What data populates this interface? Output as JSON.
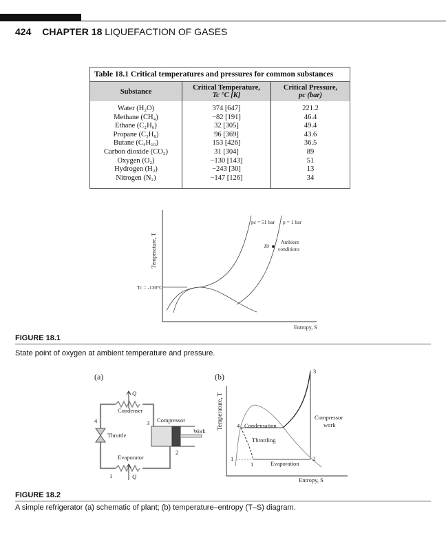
{
  "header": {
    "page_number": "424",
    "chapter": "CHAPTER 18",
    "chapter_title": "LIQUEFACTION OF GASES"
  },
  "table": {
    "caption": "Table 18.1  Critical temperatures and pressures for common substances",
    "headers": [
      "Substance",
      "Critical Temperature, Tc °C [K]",
      "Critical Pressure, pc (bar)"
    ],
    "header_lines": [
      [
        "Substance"
      ],
      [
        "Critical Temperature,",
        "Tc °C [K]"
      ],
      [
        "Critical Pressure,",
        "pc (bar)"
      ]
    ],
    "rows": [
      [
        "Water (H₂O)",
        "374 [647]",
        "221.2"
      ],
      [
        "Methane (CH₄)",
        "−82 [191]",
        "46.4"
      ],
      [
        "Ethane (C₂H₆)",
        "32 [305]",
        "49.4"
      ],
      [
        "Propane (C₃H₈)",
        "96 [369]",
        "43.6"
      ],
      [
        "Butane (C₄H₁₀)",
        "153 [426]",
        "36.5"
      ],
      [
        "Carbon dioxide (CO₂)",
        "31 [304]",
        "89"
      ],
      [
        "Oxygen (O₂)",
        "−130 [143]",
        "51"
      ],
      [
        "Hydrogen (H₂)",
        "−243 [30]",
        "13"
      ],
      [
        "Nitrogen (N₂)",
        "−147 [126]",
        "34"
      ]
    ]
  },
  "figure1": {
    "label": "FIGURE 18.1",
    "caption": "State point of oxygen at ambient temperature and pressure.",
    "y_axis": "Temperature, T",
    "x_axis": "Entropy, S",
    "tc_label": "Tc = -130°C",
    "pc_label": "pc = 51 bar",
    "p_label": "p = 1 bar",
    "t0_label": "T0",
    "ambient_label_1": "Ambient",
    "ambient_label_2": "conditions"
  },
  "figure2": {
    "label": "FIGURE 18.2",
    "caption": "A simple refrigerator (a) schematic of plant; (b) temperature–entropy (T–S) diagram.",
    "panel_a": {
      "title": "(a)",
      "condenser": "Condenser",
      "evaporator": "Evaporator",
      "throttle": "Throttle",
      "compressor": "Compressor",
      "work": "Work",
      "q_out": "Q",
      "q_in": "Q",
      "points": [
        "1",
        "2",
        "3",
        "4"
      ]
    },
    "panel_b": {
      "title": "(b)",
      "y_axis": "Temperature, T",
      "x_axis": "Entropy, S",
      "condensation": "Condensation",
      "throttling": "Throttling",
      "evaporation": "Evaporation",
      "compressor_work_1": "Compressor",
      "compressor_work_2": "work",
      "points": [
        "1",
        "1",
        "2",
        "3",
        "4"
      ]
    }
  }
}
